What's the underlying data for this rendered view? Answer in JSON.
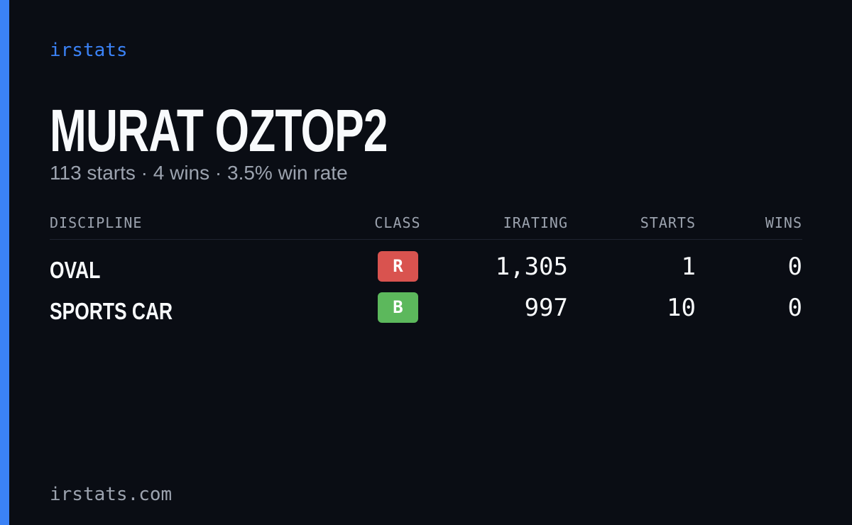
{
  "header": {
    "brand": "irstats",
    "title": "MURAT OZTOP2",
    "subtitle": "113 starts · 4 wins · 3.5% win rate"
  },
  "table": {
    "columns": [
      "DISCIPLINE",
      "CLASS",
      "IRATING",
      "STARTS",
      "WINS"
    ],
    "rows": [
      {
        "discipline": "OVAL",
        "class": "R",
        "class_color": "#d9534f",
        "irating": "1,305",
        "starts": "1",
        "wins": "0"
      },
      {
        "discipline": "SPORTS CAR",
        "class": "B",
        "class_color": "#5cb85c",
        "irating": "997",
        "starts": "10",
        "wins": "0"
      }
    ]
  },
  "footer": {
    "url": "irstats.com"
  }
}
